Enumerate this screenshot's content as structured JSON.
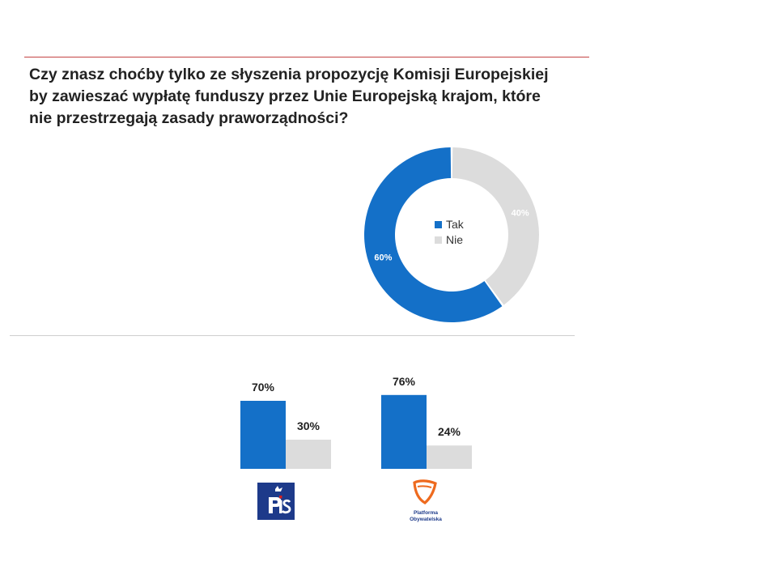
{
  "question": {
    "lines": [
      "Czy znasz choćby tylko ze słyszenia propozycję Komisji Europejskiej",
      "by zawieszać wypłatę funduszy przez Unie Europejską krajom, które",
      "nie przestrzegają zasady praworządności?"
    ]
  },
  "colors": {
    "tak": "#1470c8",
    "nie": "#dcdcdc",
    "rule_top": "#c44444",
    "rule_mid": "#cfcfcf"
  },
  "logos": {
    "pis": {
      "text": "PiS",
      "icon": "pis-party-logo"
    },
    "po": {
      "text": "Platforma Obywatelska",
      "icon": "po-party-logo"
    }
  },
  "chart_data": [
    {
      "type": "pie",
      "variant": "donut",
      "categories": [
        "Tak",
        "Nie"
      ],
      "values": [
        60,
        40
      ],
      "data_labels": [
        "60%",
        "40%"
      ],
      "legend": [
        "Tak",
        "Nie"
      ],
      "legend_position": "center",
      "colors": [
        "#1470c8",
        "#dcdcdc"
      ]
    },
    {
      "type": "bar",
      "groups": [
        "PiS",
        "Platforma Obywatelska"
      ],
      "series": [
        {
          "values": [
            70,
            76
          ],
          "data_labels": [
            "70%",
            "76%"
          ],
          "color": "#1470c8"
        },
        {
          "values": [
            30,
            24
          ],
          "data_labels": [
            "30%",
            "24%"
          ],
          "color": "#dcdcdc"
        }
      ],
      "ylim": [
        0,
        100
      ],
      "grid": false
    }
  ]
}
